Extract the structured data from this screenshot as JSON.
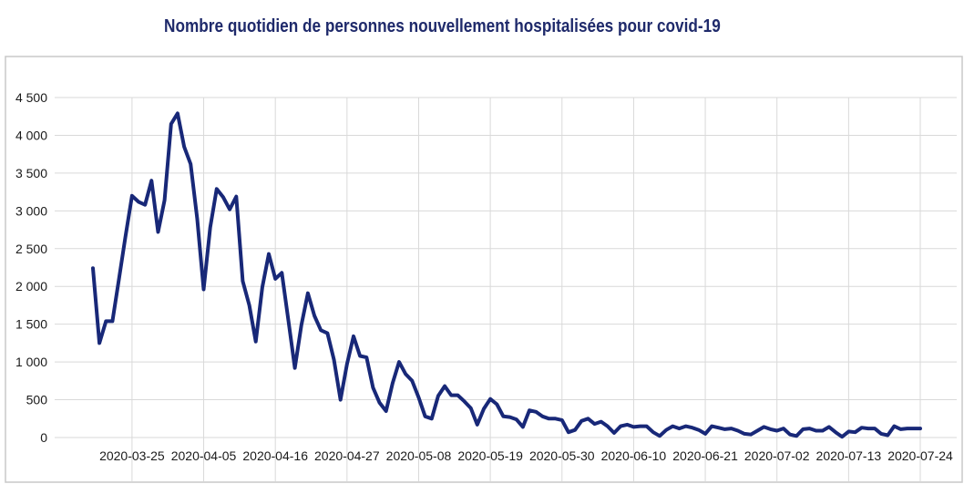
{
  "chart_data": {
    "type": "line",
    "title": "Nombre quotidien de personnes nouvellement hospitalisées pour covid-19",
    "xlabel": "",
    "ylabel": "",
    "ylim": [
      0,
      4500
    ],
    "y_ticks": [
      0,
      500,
      1000,
      1500,
      2000,
      2500,
      3000,
      3500,
      4000,
      4500
    ],
    "y_tick_labels": [
      "0",
      "500",
      "1 000",
      "1 500",
      "2 000",
      "2 500",
      "3 000",
      "3 500",
      "4 000",
      "4 500"
    ],
    "x_tick_labels": [
      "2020-03-25",
      "2020-04-05",
      "2020-04-16",
      "2020-04-27",
      "2020-05-08",
      "2020-05-19",
      "2020-05-30",
      "2020-06-10",
      "2020-06-21",
      "2020-07-02",
      "2020-07-13",
      "2020-07-24"
    ],
    "x_start": "2020-03-19",
    "x_end": "2020-07-24",
    "grid": true,
    "line_color": "#182878",
    "series": [
      {
        "name": "",
        "values": [
          2240,
          1250,
          1540,
          1540,
          2100,
          2660,
          3200,
          3120,
          3080,
          3400,
          2720,
          3140,
          4150,
          4290,
          3850,
          3620,
          2900,
          1960,
          2780,
          3290,
          3180,
          3020,
          3190,
          2070,
          1750,
          1270,
          1990,
          2430,
          2100,
          2180,
          1550,
          920,
          1490,
          1910,
          1610,
          1420,
          1380,
          1030,
          500,
          970,
          1340,
          1080,
          1060,
          660,
          460,
          350,
          720,
          1000,
          840,
          750,
          530,
          280,
          250,
          550,
          680,
          560,
          560,
          480,
          390,
          170,
          380,
          510,
          440,
          280,
          270,
          240,
          140,
          360,
          340,
          280,
          250,
          250,
          230,
          70,
          100,
          220,
          250,
          180,
          210,
          150,
          60,
          150,
          170,
          140,
          150,
          150,
          70,
          20,
          100,
          150,
          120,
          150,
          130,
          100,
          50,
          150,
          130,
          110,
          120,
          90,
          50,
          40,
          90,
          140,
          110,
          90,
          120,
          40,
          20,
          110,
          120,
          90,
          90,
          140,
          70,
          10,
          80,
          70,
          130,
          120,
          120,
          50,
          30,
          150,
          110,
          120,
          120,
          120
        ]
      }
    ]
  }
}
